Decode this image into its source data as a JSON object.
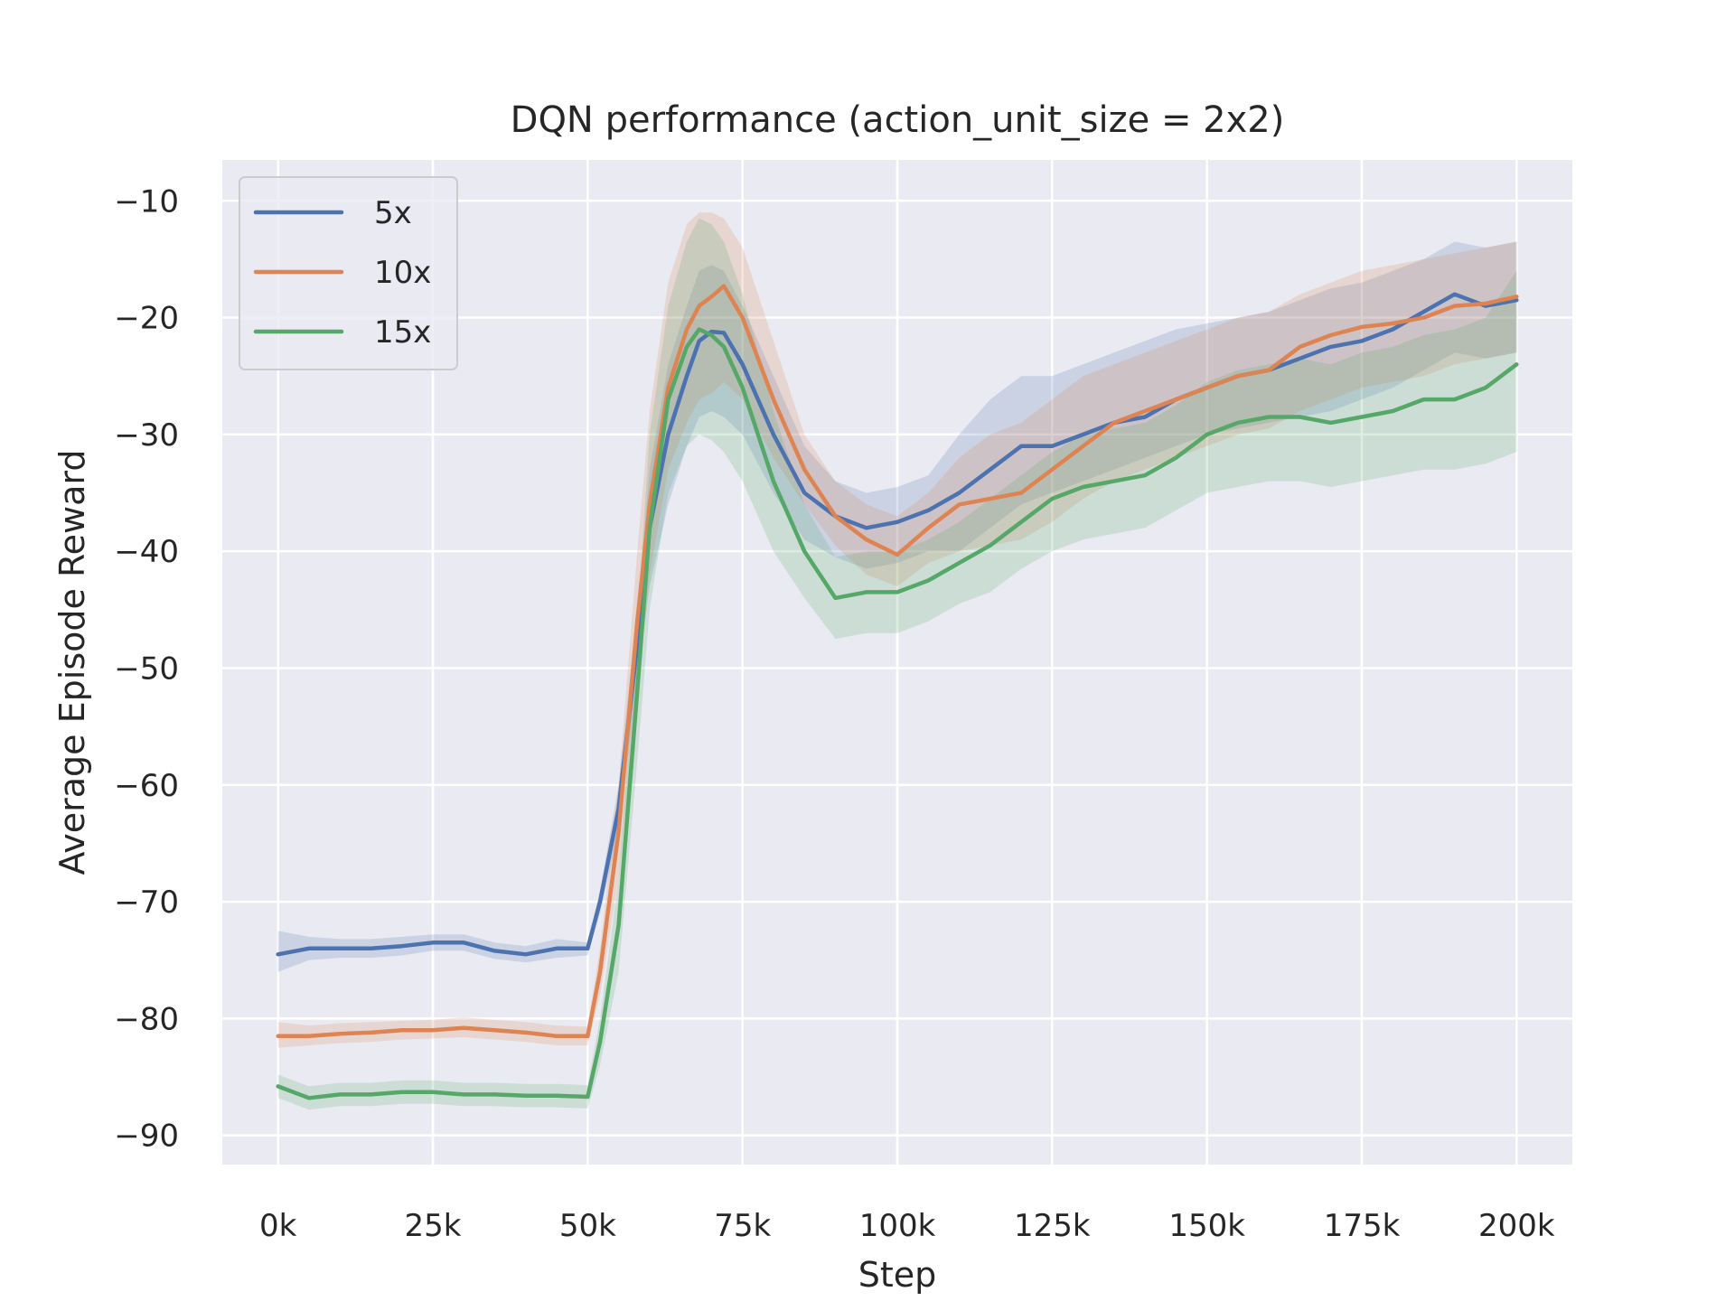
{
  "chart_data": {
    "type": "line",
    "title": "DQN performance (action_unit_size = 2x2)",
    "xlabel": "Step",
    "ylabel": "Average Episode Reward",
    "xlim": [
      -9000,
      209000
    ],
    "ylim": [
      -92.5,
      -6.5
    ],
    "x_ticks": [
      0,
      25000,
      50000,
      75000,
      100000,
      125000,
      150000,
      175000,
      200000
    ],
    "x_tick_labels": [
      "0k",
      "25k",
      "50k",
      "75k",
      "100k",
      "125k",
      "150k",
      "175k",
      "200k"
    ],
    "y_ticks": [
      -10,
      -20,
      -30,
      -40,
      -50,
      -60,
      -70,
      -80,
      -90
    ],
    "y_tick_labels": [
      "−10",
      "−20",
      "−30",
      "−40",
      "−50",
      "−60",
      "−70",
      "−80",
      "−90"
    ],
    "grid": true,
    "legend_position": "top-left",
    "x": [
      0,
      5000,
      10000,
      15000,
      20000,
      25000,
      30000,
      35000,
      40000,
      45000,
      50000,
      52000,
      55000,
      58000,
      60000,
      63000,
      66000,
      68000,
      70000,
      72000,
      75000,
      80000,
      85000,
      90000,
      95000,
      100000,
      105000,
      110000,
      115000,
      120000,
      125000,
      130000,
      135000,
      140000,
      145000,
      150000,
      155000,
      160000,
      165000,
      170000,
      175000,
      180000,
      185000,
      190000,
      195000,
      200000
    ],
    "series": [
      {
        "name": "5x",
        "color": "#4c72b0",
        "values": [
          -74.5,
          -74,
          -74,
          -74,
          -73.8,
          -73.5,
          -73.5,
          -74.2,
          -74.5,
          -74,
          -74,
          -70,
          -62,
          -48,
          -38,
          -30,
          -25,
          -22,
          -21.2,
          -21.3,
          -24,
          -30,
          -35,
          -37,
          -38,
          -37.5,
          -36.5,
          -35,
          -33,
          -31,
          -31,
          -30,
          -29,
          -28.5,
          -27,
          -26,
          -25,
          -24.5,
          -23.5,
          -22.5,
          -22,
          -21,
          -19.5,
          -18,
          -19,
          -18.5
        ],
        "upper": [
          -72.5,
          -73,
          -73.2,
          -73.2,
          -73,
          -72.8,
          -72.8,
          -73.5,
          -73.8,
          -73.2,
          -73.5,
          -69,
          -60,
          -45,
          -33,
          -24,
          -19,
          -16,
          -15.5,
          -16,
          -19,
          -25,
          -31,
          -34,
          -35,
          -34.5,
          -33.5,
          -30,
          -27,
          -25,
          -25,
          -24,
          -23,
          -22,
          -21,
          -20.5,
          -20,
          -19.5,
          -18.5,
          -17.5,
          -17,
          -16,
          -15,
          -13.5,
          -14,
          -13.5
        ],
        "lower": [
          -76,
          -75,
          -74.8,
          -74.8,
          -74.6,
          -74.2,
          -74.2,
          -74.9,
          -75.2,
          -74.8,
          -74.6,
          -71,
          -64,
          -51,
          -43,
          -36,
          -31,
          -28.5,
          -28,
          -28.5,
          -30,
          -35,
          -39,
          -40.5,
          -41.5,
          -41,
          -40,
          -40,
          -38,
          -36,
          -35,
          -34,
          -33,
          -32,
          -31,
          -30,
          -29.5,
          -29,
          -28.5,
          -28,
          -27,
          -26,
          -24.5,
          -23,
          -23.5,
          -23
        ]
      },
      {
        "name": "10x",
        "color": "#dd8452",
        "values": [
          -81.5,
          -81.5,
          -81.3,
          -81.2,
          -81,
          -81,
          -80.8,
          -81,
          -81.2,
          -81.5,
          -81.5,
          -76,
          -64,
          -46,
          -36,
          -26,
          -21,
          -19,
          -18.2,
          -17.3,
          -20,
          -27,
          -33,
          -37,
          -39,
          -40.3,
          -38,
          -36,
          -35.5,
          -35,
          -33,
          -31,
          -29,
          -28,
          -27,
          -26,
          -25,
          -24.5,
          -22.5,
          -21.5,
          -20.8,
          -20.5,
          -20,
          -19,
          -18.8,
          -18.2
        ],
        "upper": [
          -80.3,
          -80.6,
          -80.4,
          -80.3,
          -80.2,
          -80.1,
          -79.9,
          -80.1,
          -80.3,
          -80.6,
          -80.7,
          -74,
          -60,
          -40,
          -28,
          -17,
          -12,
          -11,
          -11,
          -11.5,
          -14,
          -22,
          -30,
          -34,
          -36,
          -37,
          -35,
          -32,
          -30,
          -29,
          -27,
          -25,
          -24,
          -23,
          -22,
          -21,
          -20,
          -19.5,
          -18,
          -17,
          -16,
          -15.5,
          -15,
          -14.5,
          -14,
          -13.5
        ],
        "lower": [
          -82.5,
          -82.3,
          -82.1,
          -82,
          -81.8,
          -81.7,
          -81.6,
          -81.8,
          -82,
          -82.3,
          -82.3,
          -78,
          -68,
          -52,
          -42,
          -33,
          -29,
          -27,
          -26.5,
          -25.5,
          -27,
          -32,
          -36,
          -39.5,
          -42,
          -43,
          -41,
          -40,
          -39.5,
          -39,
          -37.5,
          -35.5,
          -34,
          -33,
          -32,
          -31,
          -30,
          -29.5,
          -28,
          -27,
          -26,
          -25.5,
          -25,
          -24,
          -23.5,
          -23
        ]
      },
      {
        "name": "15x",
        "color": "#55a868",
        "values": [
          -85.8,
          -86.8,
          -86.5,
          -86.5,
          -86.3,
          -86.3,
          -86.5,
          -86.5,
          -86.6,
          -86.6,
          -86.7,
          -82,
          -72,
          -52,
          -38,
          -27,
          -22.5,
          -21,
          -21.5,
          -22.5,
          -26,
          -34,
          -40,
          -44,
          -43.5,
          -43.5,
          -42.5,
          -41,
          -39.5,
          -37.5,
          -35.5,
          -34.5,
          -34,
          -33.5,
          -32,
          -30,
          -29,
          -28.5,
          -28.5,
          -29,
          -28.5,
          -28,
          -27,
          -27,
          -26,
          -24
        ],
        "upper": [
          -84.8,
          -85.8,
          -85.5,
          -85.5,
          -85.3,
          -85.3,
          -85.5,
          -85.5,
          -85.6,
          -85.6,
          -85.7,
          -80,
          -68,
          -46,
          -30,
          -19,
          -13.5,
          -11.5,
          -12,
          -13.5,
          -18,
          -28,
          -36,
          -40.5,
          -40,
          -40,
          -39,
          -37.5,
          -35.5,
          -33.5,
          -31.5,
          -30,
          -29.5,
          -29,
          -27.5,
          -25.5,
          -24.5,
          -24,
          -23.5,
          -24,
          -23,
          -22.5,
          -21.5,
          -21,
          -20,
          -16
        ],
        "lower": [
          -86.8,
          -87.8,
          -87.5,
          -87.5,
          -87.3,
          -87.3,
          -87.5,
          -87.5,
          -87.6,
          -87.6,
          -87.7,
          -84,
          -76,
          -58,
          -45,
          -35,
          -31,
          -30,
          -30.5,
          -31.5,
          -34,
          -40,
          -44,
          -47.5,
          -47,
          -47,
          -46,
          -44.5,
          -43.5,
          -41.5,
          -40,
          -39,
          -38.5,
          -38,
          -36.5,
          -35,
          -34.5,
          -34,
          -34,
          -34.5,
          -34,
          -33.5,
          -33,
          -33,
          -32.5,
          -31.5
        ]
      }
    ]
  }
}
